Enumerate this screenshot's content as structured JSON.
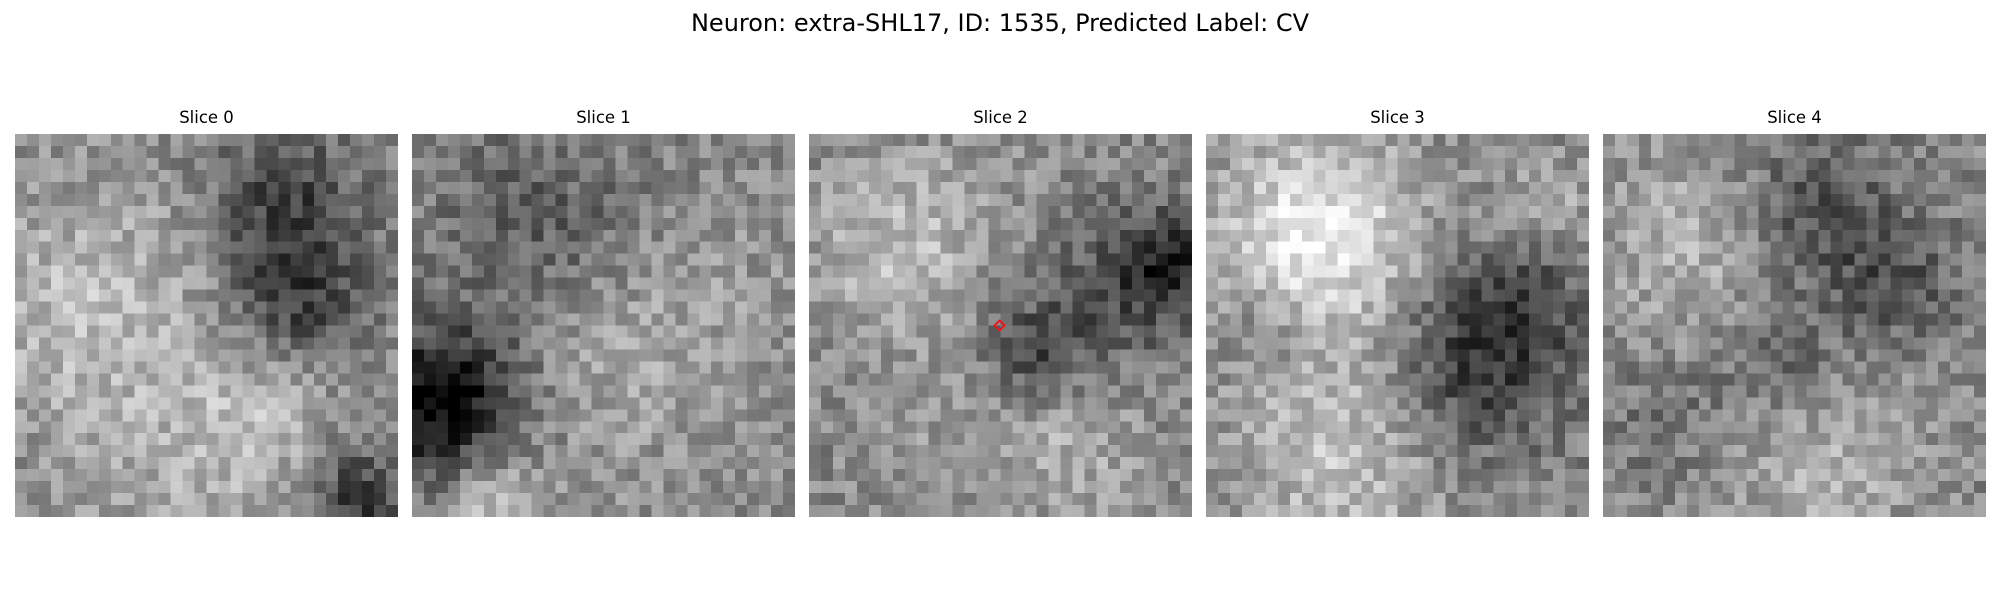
{
  "figure": {
    "title": "Neuron: extra-SHL17, ID: 1535, Predicted Label: CV"
  },
  "slices": [
    {
      "label": "Slice 0"
    },
    {
      "label": "Slice 1"
    },
    {
      "label": "Slice 2"
    },
    {
      "label": "Slice 3"
    },
    {
      "label": "Slice 4"
    }
  ],
  "marker": {
    "slice_index": 2,
    "shape": "diamond",
    "color": "#e8171b"
  },
  "colormap": "gray"
}
